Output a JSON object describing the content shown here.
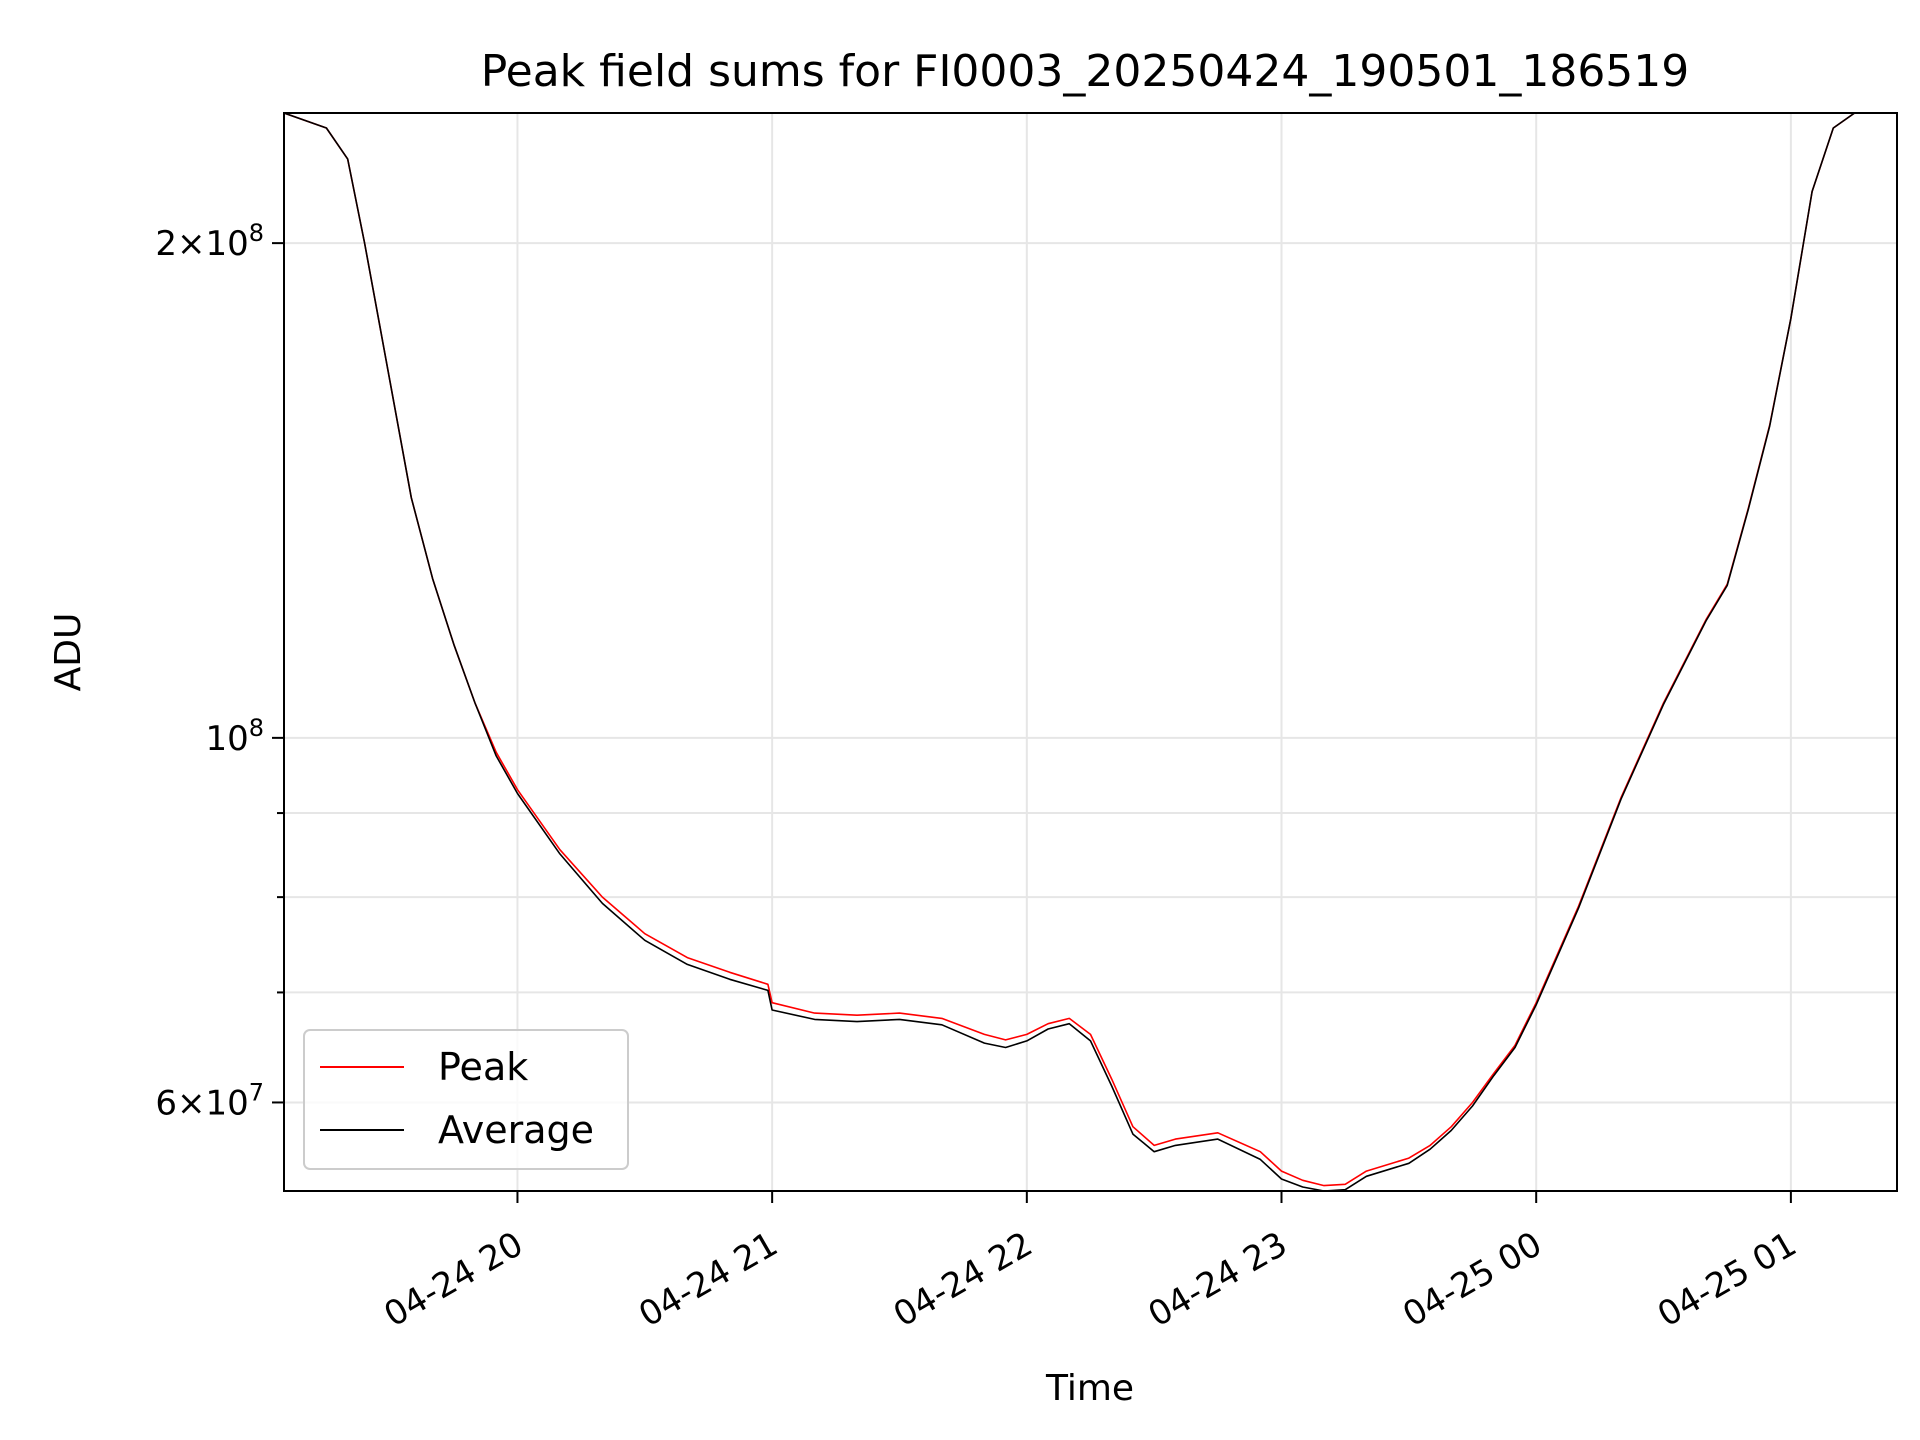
{
  "chart_data": {
    "type": "line",
    "title": "Peak field sums for FI0003_20250424_190501_186519",
    "xlabel": "Time",
    "ylabel": "ADU",
    "yscale": "log",
    "grid": true,
    "legend_placement": "lower-left",
    "xlim": [
      "2025-04-24 19:05",
      "2025-04-25 01:25"
    ],
    "ylim": [
      53000000,
      240000000
    ],
    "x_ticks": [
      {
        "value": "2025-04-24 20:00",
        "label": "04-24 20"
      },
      {
        "value": "2025-04-24 21:00",
        "label": "04-24 21"
      },
      {
        "value": "2025-04-24 22:00",
        "label": "04-24 22"
      },
      {
        "value": "2025-04-24 23:00",
        "label": "04-24 23"
      },
      {
        "value": "2025-04-25 00:00",
        "label": "04-25 00"
      },
      {
        "value": "2025-04-25 01:00",
        "label": "04-25 01"
      }
    ],
    "y_ticks": [
      {
        "value": 200000000,
        "mantissa": "2",
        "exponent": "8"
      },
      {
        "value": 100000000,
        "mantissa": "",
        "exponent": "8"
      },
      {
        "value": 60000000,
        "mantissa": "6",
        "exponent": "7"
      }
    ],
    "y_minor_ticks": [
      70000000,
      80000000,
      90000000
    ],
    "series": [
      {
        "name": "Peak",
        "color": "#ff0000",
        "x": [
          "2025-04-24 19:05",
          "2025-04-24 19:15",
          "2025-04-24 19:20",
          "2025-04-24 19:24",
          "2025-04-24 19:29",
          "2025-04-24 19:35",
          "2025-04-24 19:40",
          "2025-04-24 19:45",
          "2025-04-24 19:50",
          "2025-04-24 19:55",
          "2025-04-24 20:00",
          "2025-04-24 20:10",
          "2025-04-24 20:20",
          "2025-04-24 20:30",
          "2025-04-24 20:40",
          "2025-04-24 20:50",
          "2025-04-24 20:59",
          "2025-04-24 21:00",
          "2025-04-24 21:10",
          "2025-04-24 21:20",
          "2025-04-24 21:30",
          "2025-04-24 21:40",
          "2025-04-24 21:50",
          "2025-04-24 21:55",
          "2025-04-24 22:00",
          "2025-04-24 22:05",
          "2025-04-24 22:10",
          "2025-04-24 22:15",
          "2025-04-24 22:20",
          "2025-04-24 22:25",
          "2025-04-24 22:30",
          "2025-04-24 22:35",
          "2025-04-24 22:45",
          "2025-04-24 22:55",
          "2025-04-24 23:00",
          "2025-04-24 23:05",
          "2025-04-24 23:10",
          "2025-04-24 23:15",
          "2025-04-24 23:20",
          "2025-04-24 23:30",
          "2025-04-24 23:35",
          "2025-04-24 23:40",
          "2025-04-24 23:45",
          "2025-04-24 23:50",
          "2025-04-24 23:55",
          "2025-04-25 00:00",
          "2025-04-25 00:10",
          "2025-04-25 00:20",
          "2025-04-25 00:30",
          "2025-04-25 00:40",
          "2025-04-25 00:45",
          "2025-04-25 00:50",
          "2025-04-25 00:55",
          "2025-04-25 01:00",
          "2025-04-25 01:05",
          "2025-04-25 01:10",
          "2025-04-25 01:15",
          "2025-04-25 01:25"
        ],
        "y": [
          240000000,
          235000000,
          225000000,
          200000000,
          170000000,
          140000000,
          125000000,
          114000000,
          105000000,
          98000000,
          93000000,
          85500000,
          80000000,
          76000000,
          73500000,
          72000000,
          70800000,
          69000000,
          68000000,
          67800000,
          68000000,
          67500000,
          66000000,
          65500000,
          66000000,
          67000000,
          67500000,
          66000000,
          62000000,
          58000000,
          56500000,
          57000000,
          57500000,
          56000000,
          54500000,
          53800000,
          53400000,
          53500000,
          54500000,
          55500000,
          56500000,
          58000000,
          60000000,
          62500000,
          65000000,
          69000000,
          79000000,
          92000000,
          105000000,
          118000000,
          124000000,
          138000000,
          155000000,
          180000000,
          215000000,
          235000000,
          240000000,
          240000000
        ]
      },
      {
        "name": "Average",
        "color": "#000000",
        "x": [
          "2025-04-24 19:05",
          "2025-04-24 19:15",
          "2025-04-24 19:20",
          "2025-04-24 19:24",
          "2025-04-24 19:29",
          "2025-04-24 19:35",
          "2025-04-24 19:40",
          "2025-04-24 19:45",
          "2025-04-24 19:50",
          "2025-04-24 19:55",
          "2025-04-24 20:00",
          "2025-04-24 20:10",
          "2025-04-24 20:20",
          "2025-04-24 20:30",
          "2025-04-24 20:40",
          "2025-04-24 20:50",
          "2025-04-24 20:59",
          "2025-04-24 21:00",
          "2025-04-24 21:10",
          "2025-04-24 21:20",
          "2025-04-24 21:30",
          "2025-04-24 21:40",
          "2025-04-24 21:50",
          "2025-04-24 21:55",
          "2025-04-24 22:00",
          "2025-04-24 22:05",
          "2025-04-24 22:10",
          "2025-04-24 22:15",
          "2025-04-24 22:20",
          "2025-04-24 22:25",
          "2025-04-24 22:30",
          "2025-04-24 22:35",
          "2025-04-24 22:45",
          "2025-04-24 22:55",
          "2025-04-24 23:00",
          "2025-04-24 23:05",
          "2025-04-24 23:10",
          "2025-04-24 23:15",
          "2025-04-24 23:20",
          "2025-04-24 23:30",
          "2025-04-24 23:35",
          "2025-04-24 23:40",
          "2025-04-24 23:45",
          "2025-04-24 23:50",
          "2025-04-24 23:55",
          "2025-04-25 00:00",
          "2025-04-25 00:10",
          "2025-04-25 00:20",
          "2025-04-25 00:30",
          "2025-04-25 00:40",
          "2025-04-25 00:45",
          "2025-04-25 00:50",
          "2025-04-25 00:55",
          "2025-04-25 01:00",
          "2025-04-25 01:05",
          "2025-04-25 01:10",
          "2025-04-25 01:15",
          "2025-04-25 01:25"
        ],
        "y": [
          240000000,
          235000000,
          225000000,
          200000000,
          170000000,
          140000000,
          125000000,
          114000000,
          105000000,
          97500000,
          92500000,
          85000000,
          79300000,
          75300000,
          72800000,
          71300000,
          70200000,
          68300000,
          67400000,
          67200000,
          67400000,
          66900000,
          65200000,
          64800000,
          65400000,
          66500000,
          67000000,
          65400000,
          61400000,
          57400000,
          56000000,
          56500000,
          57000000,
          55400000,
          53900000,
          53300000,
          53000000,
          53100000,
          54100000,
          55100000,
          56200000,
          57700000,
          59700000,
          62300000,
          64800000,
          68800000,
          78800000,
          91800000,
          104800000,
          117800000,
          123800000,
          137800000,
          154800000,
          180000000,
          215000000,
          235000000,
          240000000,
          240000000
        ]
      }
    ]
  }
}
